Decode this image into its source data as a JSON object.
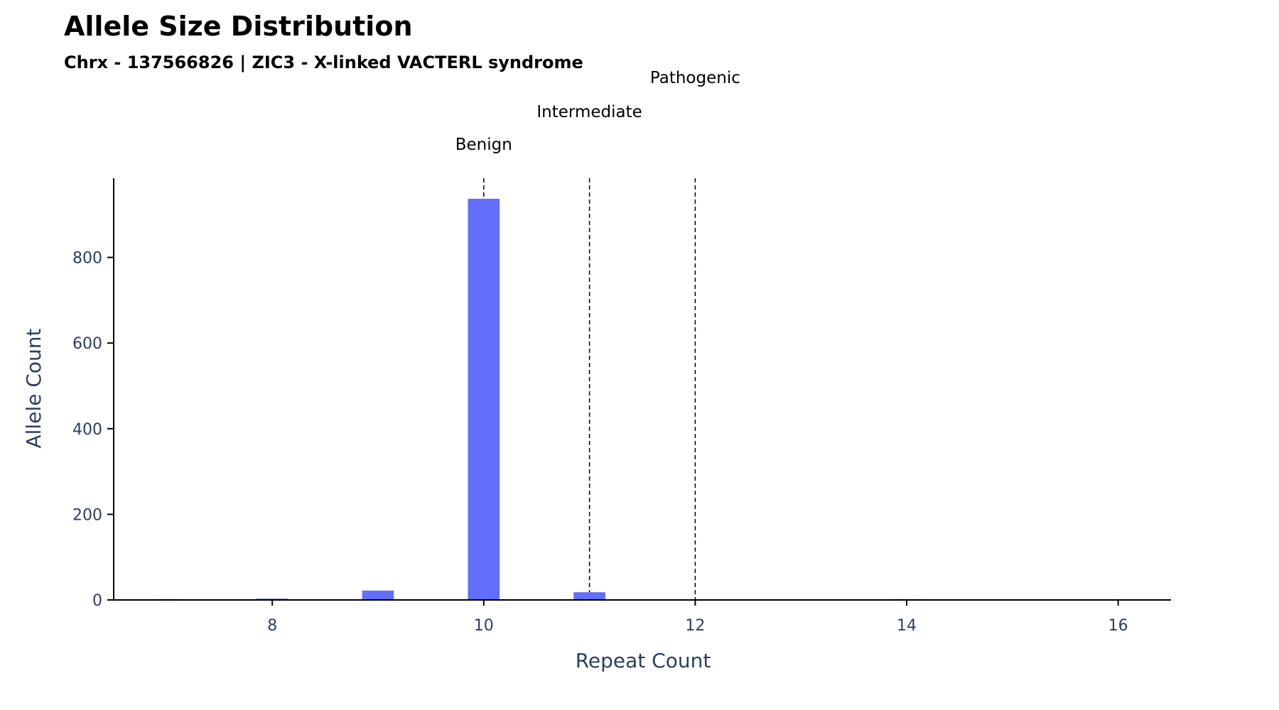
{
  "chart_data": {
    "type": "bar",
    "title": "Allele Size Distribution",
    "subtitle": "Chrx - 137566826 | ZIC3 - X-linked VACTERL syndrome",
    "xlabel": "Repeat Count",
    "ylabel": "Allele Count",
    "xlim": [
      6.5,
      16.5
    ],
    "ylim": [
      0,
      985
    ],
    "x_ticks": [
      8,
      10,
      12,
      14,
      16
    ],
    "y_ticks": [
      0,
      200,
      400,
      600,
      800
    ],
    "bar_width": 0.3,
    "bar_color": "#636efa",
    "grid": false,
    "x": [
      7,
      8,
      9,
      10,
      11,
      14
    ],
    "values": [
      2,
      3,
      22,
      937,
      18,
      2
    ],
    "thresholds": [
      {
        "label": "Benign",
        "x": 10
      },
      {
        "label": "Intermediate",
        "x": 11
      },
      {
        "label": "Pathogenic",
        "x": 12
      }
    ]
  }
}
